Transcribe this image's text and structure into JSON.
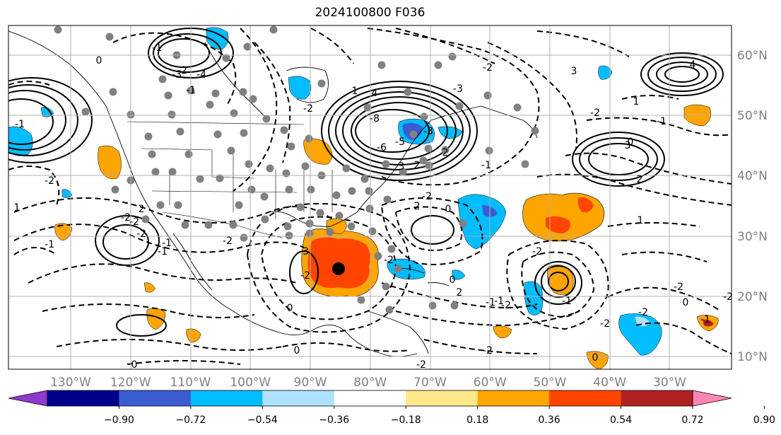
{
  "title": "2024100800 F036",
  "map": {
    "lon_range": [
      -137,
      -16
    ],
    "lat_range": [
      8,
      65
    ],
    "lon_ticks": [
      "130°W",
      "120°W",
      "110°W",
      "100°W",
      "90°W",
      "80°W",
      "70°W",
      "60°W",
      "50°W",
      "40°W",
      "30°W"
    ],
    "lat_ticks": [
      "60°N",
      "50°N",
      "40°N",
      "30°N",
      "20°N",
      "10°N"
    ],
    "grid": true,
    "storm_center": {
      "lon": -84.5,
      "lat": 24.5
    },
    "contour_labels": [
      "-1",
      "-2",
      "-3",
      "-4",
      "-5",
      "-6",
      "-8",
      "1",
      "2",
      "3",
      "4",
      "0",
      "-1",
      "-2",
      "-3",
      "2",
      "-2",
      "-2",
      "1",
      "-2",
      "-3",
      "-2",
      "-2",
      "-1",
      "-2",
      "2",
      "-1",
      "0",
      "-2",
      "0",
      "-1",
      "-2",
      "0",
      "-2",
      "-2",
      "-1",
      "-2",
      "1",
      "0",
      "2",
      "1",
      "-1",
      "-2",
      "-2",
      "-1",
      "-2",
      "0",
      "0",
      "-2",
      "-3",
      "-2",
      "-1",
      "3",
      "4",
      "-1",
      "2",
      "-1",
      "0",
      "2",
      "3",
      "-2",
      "-1",
      "-2",
      "0"
    ]
  },
  "colorbar": {
    "ticks": [
      "−0.90",
      "−0.72",
      "−0.54",
      "−0.36",
      "−0.18",
      "0.18",
      "0.36",
      "0.54",
      "0.72",
      "0.90"
    ],
    "colors": [
      "#8e3ad0",
      "#00008c",
      "#3b5bd0",
      "#00bdff",
      "#aee2ff",
      "#ffffff",
      "#ffe88a",
      "#ffa500",
      "#ff4500",
      "#b22222",
      "#ff86b4"
    ]
  }
}
